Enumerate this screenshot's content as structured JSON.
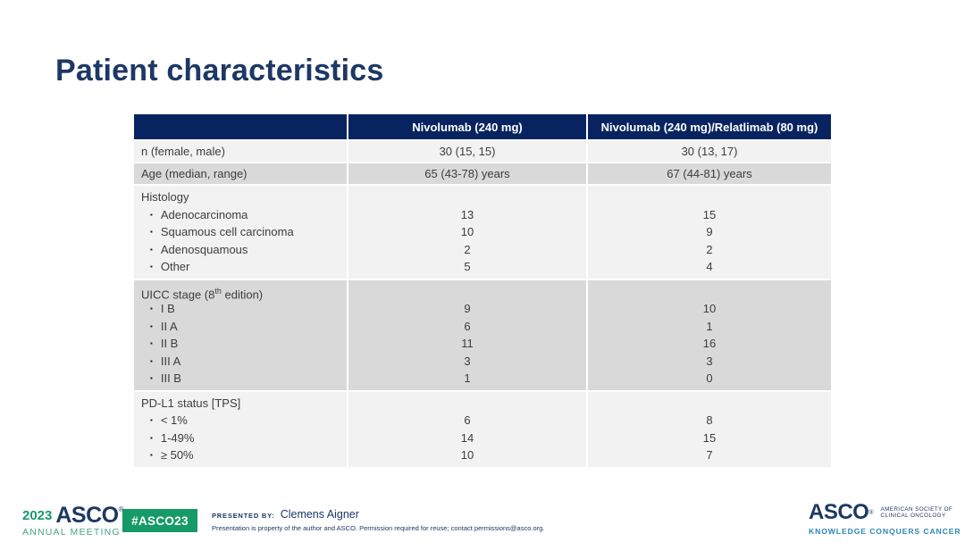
{
  "slide": {
    "title": "Patient characteristics"
  },
  "colors": {
    "header_navy": "#082460",
    "title_navy": "#1d3865",
    "row_light": "#f2f2f2",
    "row_dark": "#d9d9d9",
    "asco_green": "#159a68",
    "tagline_teal": "#2d87b8"
  },
  "table": {
    "bullet_char": "▪",
    "columns": [
      "",
      "Nivolumab (240 mg)",
      "Nivolumab (240 mg)/Relatlimab (80 mg)"
    ],
    "rows": [
      {
        "type": "simple",
        "shade": "light",
        "label": "n (female, male)",
        "values": [
          "30 (15, 15)",
          "30 (13, 17)"
        ]
      },
      {
        "type": "simple",
        "shade": "dark",
        "label": "Age (median, range)",
        "values": [
          "65 (43-78) years",
          "67 (44-81) years"
        ]
      },
      {
        "type": "group",
        "shade": "light",
        "label": "Histology",
        "items": [
          {
            "label": "Adenocarcinoma",
            "values": [
              "13",
              "15"
            ]
          },
          {
            "label": "Squamous cell carcinoma",
            "values": [
              "10",
              "9"
            ]
          },
          {
            "label": "Adenosquamous",
            "values": [
              "2",
              "2"
            ]
          },
          {
            "label": "Other",
            "values": [
              "5",
              "4"
            ]
          }
        ]
      },
      {
        "type": "group",
        "shade": "dark",
        "label_pre": "UICC stage (8",
        "label_sup": "th",
        "label_post": " edition)",
        "items": [
          {
            "label": "I B",
            "values": [
              "9",
              "10"
            ]
          },
          {
            "label": "II A",
            "values": [
              "6",
              "1"
            ]
          },
          {
            "label": "II B",
            "values": [
              "11",
              "16"
            ]
          },
          {
            "label": "III A",
            "values": [
              "3",
              "3"
            ]
          },
          {
            "label": "III B",
            "values": [
              "1",
              "0"
            ]
          }
        ]
      },
      {
        "type": "group",
        "shade": "light",
        "label": "PD-L1 status [TPS]",
        "items": [
          {
            "label": "< 1%",
            "values": [
              "6",
              "8"
            ]
          },
          {
            "label": "1-49%",
            "values": [
              "14",
              "15"
            ]
          },
          {
            "label": "≥ 50%",
            "values": [
              "10",
              "7"
            ]
          }
        ]
      }
    ]
  },
  "footer": {
    "logo_left": {
      "year": "2023",
      "asco": "ASCO",
      "reg": "®",
      "annual": "ANNUAL MEETING"
    },
    "hashtag": "#ASCO23",
    "presented_by_label": "PRESENTED BY:",
    "presenter": "Clemens Aigner",
    "disclaimer": "Presentation is property of the author and ASCO. Permission required for reuse; contact permissions@asco.org.",
    "logo_right": {
      "asco": "ASCO",
      "reg": "®",
      "society_line1": "AMERICAN SOCIETY OF",
      "society_line2": "CLINICAL ONCOLOGY",
      "tagline": "KNOWLEDGE CONQUERS CANCER"
    }
  }
}
